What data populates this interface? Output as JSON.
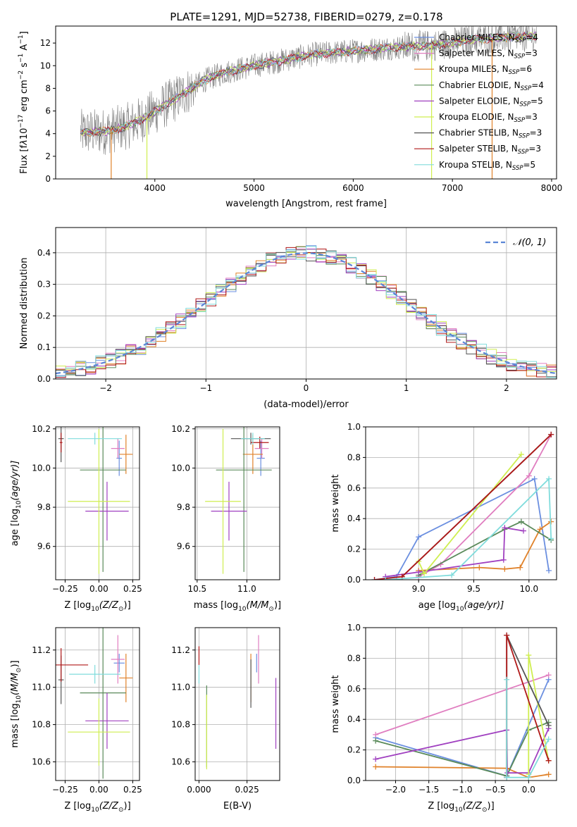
{
  "figure_title": "PLATE=1291, MJD=52738, FIBERID=0279, z=0.178",
  "colors": {
    "Chabrier MILES": "#6b8fe0",
    "Salpeter MILES": "#e07ec0",
    "Kroupa MILES": "#e0822a",
    "Chabrier ELODIE": "#5a8a5a",
    "Salpeter ELODIE": "#a040c0",
    "Kroupa ELODIE": "#cfee50",
    "Chabrier STELIB": "#555555",
    "Salpeter STELIB": "#b01818",
    "Kroupa STELIB": "#80dcdc",
    "data": "#808080",
    "gauss": "#5b86d6"
  },
  "chart_data": [
    {
      "type": "line",
      "id": "spectrum",
      "xlabel": "wavelength [Angstrom, rest frame]",
      "ylabel_html": "Flux [f<tspan font-style='italic'>λ</tspan>10<tspan dy='-6' font-size='9'>−17</tspan><tspan dy='6'> erg cm</tspan><tspan dy='-6' font-size='9'>−2</tspan><tspan dy='6'> s</tspan><tspan dy='-6' font-size='9'>−1</tspan><tspan dy='6'> A</tspan><tspan dy='-6' font-size='9'>−1</tspan><tspan dy='6'>]</tspan>",
      "xlim": [
        3000,
        8050
      ],
      "ylim": [
        0,
        13.5
      ],
      "xticks": [
        4000,
        5000,
        6000,
        7000,
        8000
      ],
      "yticks": [
        0,
        2,
        4,
        6,
        8,
        10,
        12
      ],
      "grid": false,
      "legend_position": "upper-right",
      "legend": [
        {
          "label": "Chabrier MILES, N",
          "sub": "SSP",
          "val": "=4"
        },
        {
          "label": "Salpeter MILES, N",
          "sub": "SSP",
          "val": "=3"
        },
        {
          "label": "Kroupa MILES, N",
          "sub": "SSP",
          "val": "=6"
        },
        {
          "label": "Chabrier ELODIE, N",
          "sub": "SSP",
          "val": "=4"
        },
        {
          "label": "Salpeter ELODIE, N",
          "sub": "SSP",
          "val": "=5"
        },
        {
          "label": "Kroupa ELODIE, N",
          "sub": "SSP",
          "val": "=3"
        },
        {
          "label": "Chabrier STELIB, N",
          "sub": "SSP",
          "val": "=3"
        },
        {
          "label": "Salpeter STELIB, N",
          "sub": "SSP",
          "val": "=3"
        },
        {
          "label": "Kroupa STELIB, N",
          "sub": "SSP",
          "val": "=5"
        }
      ],
      "continuum": {
        "x": [
          3250,
          3500,
          3700,
          3900,
          4100,
          4300,
          4500,
          4700,
          5000,
          5300,
          5600,
          6000,
          6400,
          6800,
          7000,
          7200,
          7500,
          7800
        ],
        "y": [
          4.1,
          4.2,
          4.6,
          5.4,
          6.5,
          7.6,
          8.7,
          9.4,
          10.0,
          10.5,
          11.0,
          11.3,
          11.6,
          11.8,
          12.0,
          12.3,
          12.5,
          12.6
        ]
      },
      "data_range": [
        3250,
        7850
      ]
    },
    {
      "type": "bar",
      "id": "residuals",
      "xlabel": "(data-model)/error",
      "ylabel": "Normed distribution",
      "xlim": [
        -2.5,
        2.5
      ],
      "ylim": [
        0,
        0.48
      ],
      "xticks": [
        -2,
        -1,
        0,
        1,
        2
      ],
      "yticks": [
        0.0,
        0.1,
        0.2,
        0.3,
        0.4
      ],
      "xtick_labels": [
        "−2",
        "−1",
        "0",
        "1",
        "2"
      ],
      "ytick_labels": [
        "0.0",
        "0.1",
        "0.2",
        "0.3",
        "0.4"
      ],
      "grid": true,
      "legend_position": "upper-right",
      "gauss_label": "𝒩(0, 1)",
      "bin_width": 0.1
    },
    {
      "type": "scatter",
      "id": "age-vs-Z",
      "xlabel": "Z [log",
      "xlabel_sub": "10",
      "xlabel_tail": "(Z/Z",
      "ylabel": "age  [log",
      "ylabel_sub": "10",
      "ylabel_tail": "(age/yr)]",
      "xlim": [
        -0.32,
        0.3
      ],
      "ylim": [
        9.43,
        10.21
      ],
      "xticks": [
        -0.25,
        0.0,
        0.25
      ],
      "xtick_labels": [
        "−0.25",
        "0.00",
        "0.25"
      ],
      "yticks": [
        9.6,
        9.8,
        10.0,
        10.2
      ],
      "ytick_labels": [
        "9.6",
        "9.8",
        "10.0",
        "10.2"
      ],
      "grid": true,
      "points": [
        {
          "model": "Chabrier MILES",
          "x": 0.15,
          "y": 10.05,
          "xerr": 0.02,
          "yerr": 0.09
        },
        {
          "model": "Salpeter MILES",
          "x": 0.14,
          "y": 10.1,
          "xerr": 0.05,
          "yerr": 0.05
        },
        {
          "model": "Kroupa MILES",
          "x": 0.2,
          "y": 10.07,
          "xerr": 0.05,
          "yerr": 0.1
        },
        {
          "model": "Chabrier ELODIE",
          "x": 0.03,
          "y": 9.99,
          "xerr": 0.17,
          "yerr": 0.52
        },
        {
          "model": "Salpeter ELODIE",
          "x": 0.06,
          "y": 9.78,
          "xerr": 0.16,
          "yerr": 0.15
        },
        {
          "model": "Kroupa ELODIE",
          "x": 0.0,
          "y": 9.83,
          "xerr": 0.23,
          "yerr": 0.37
        },
        {
          "model": "Chabrier STELIB",
          "x": -0.28,
          "y": 10.15,
          "xerr": 0.02,
          "yerr": 0.12
        },
        {
          "model": "Salpeter STELIB",
          "x": -0.28,
          "y": 10.13,
          "xerr": 0.01,
          "yerr": 0.05
        },
        {
          "model": "Kroupa STELIB",
          "x": -0.03,
          "y": 10.15,
          "xerr": 0.2,
          "yerr": 0.03
        }
      ]
    },
    {
      "type": "scatter",
      "id": "age-vs-mass",
      "xlabel": "mass [log",
      "xlabel_sub": "10",
      "xlabel_tail": "(M/M",
      "xlim": [
        10.48,
        11.33
      ],
      "ylim": [
        9.43,
        10.21
      ],
      "xticks": [
        10.5,
        11.0
      ],
      "xtick_labels": [
        "10.5",
        "11.0"
      ],
      "yticks": [
        9.6,
        9.8,
        10.0,
        10.2
      ],
      "ytick_labels": [
        "9.6",
        "9.8",
        "10.0",
        "10.2"
      ],
      "grid": true,
      "points": [
        {
          "model": "Chabrier MILES",
          "x": 11.14,
          "y": 10.05,
          "xerr": 0.04,
          "yerr": 0.09
        },
        {
          "model": "Salpeter MILES",
          "x": 11.15,
          "y": 10.1,
          "xerr": 0.07,
          "yerr": 0.05
        },
        {
          "model": "Kroupa MILES",
          "x": 11.06,
          "y": 10.07,
          "xerr": 0.1,
          "yerr": 0.1
        },
        {
          "model": "Chabrier ELODIE",
          "x": 10.97,
          "y": 9.99,
          "xerr": 0.28,
          "yerr": 0.52
        },
        {
          "model": "Salpeter ELODIE",
          "x": 10.82,
          "y": 9.78,
          "xerr": 0.18,
          "yerr": 0.15
        },
        {
          "model": "Kroupa ELODIE",
          "x": 10.76,
          "y": 9.83,
          "xerr": 0.18,
          "yerr": 0.37
        },
        {
          "model": "Chabrier STELIB",
          "x": 11.04,
          "y": 10.15,
          "xerr": 0.2,
          "yerr": 0.03
        },
        {
          "model": "Salpeter STELIB",
          "x": 11.13,
          "y": 10.13,
          "xerr": 0.09,
          "yerr": 0.03
        },
        {
          "model": "Kroupa STELIB",
          "x": 11.06,
          "y": 10.15,
          "xerr": 0.12,
          "yerr": 0.03
        }
      ]
    },
    {
      "type": "line",
      "id": "mass-weight-vs-age",
      "xlabel": "age  [log",
      "xlabel_sub": "10",
      "xlabel_tail": "(age/yr)]",
      "ylabel": "mass weight",
      "xlim": [
        8.52,
        10.25
      ],
      "ylim": [
        0,
        1.0
      ],
      "xticks": [
        9.0,
        9.5,
        10.0
      ],
      "xtick_labels": [
        "9.0",
        "9.5",
        "10.0"
      ],
      "yticks": [
        0.0,
        0.2,
        0.4,
        0.6,
        0.8,
        1.0
      ],
      "ytick_labels": [
        "0.0",
        "0.2",
        "0.4",
        "0.6",
        "0.8",
        "1.0"
      ],
      "grid": true,
      "series": [
        {
          "model": "Chabrier MILES",
          "x": [
            8.6,
            8.8,
            9.0,
            10.05,
            10.18
          ],
          "y": [
            0.0,
            0.02,
            0.28,
            0.66,
            0.06
          ]
        },
        {
          "model": "Salpeter MILES",
          "x": [
            9.0,
            9.2,
            10.0,
            10.2
          ],
          "y": [
            0.02,
            0.1,
            0.68,
            0.95
          ]
        },
        {
          "model": "Kroupa MILES",
          "x": [
            9.0,
            9.55,
            9.78,
            9.92,
            10.1,
            10.2
          ],
          "y": [
            0.06,
            0.08,
            0.07,
            0.08,
            0.33,
            0.38
          ]
        },
        {
          "model": "Chabrier ELODIE",
          "x": [
            9.0,
            9.78,
            9.93,
            10.2
          ],
          "y": [
            0.03,
            0.33,
            0.38,
            0.26
          ]
        },
        {
          "model": "Salpeter ELODIE",
          "x": [
            8.7,
            9.0,
            9.77,
            9.78,
            9.95
          ],
          "y": [
            0.02,
            0.05,
            0.13,
            0.34,
            0.32
          ]
        },
        {
          "model": "Kroupa ELODIE",
          "x": [
            9.0,
            9.05,
            9.93
          ],
          "y": [
            0.12,
            0.04,
            0.82
          ]
        },
        {
          "model": "Chabrier STELIB",
          "x": [
            8.85,
            10.2
          ],
          "y": [
            0.02,
            0.95
          ]
        },
        {
          "model": "Salpeter STELIB",
          "x": [
            8.6,
            8.85,
            10.2
          ],
          "y": [
            0.0,
            0.02,
            0.95
          ]
        },
        {
          "model": "Kroupa STELIB",
          "x": [
            8.7,
            9.3,
            10.18,
            10.2
          ],
          "y": [
            0.0,
            0.03,
            0.66,
            0.27
          ]
        }
      ]
    },
    {
      "type": "scatter",
      "id": "mass-vs-Z",
      "ylabel": "mass [log",
      "ylabel_sub": "10",
      "ylabel_tail": "(M/M",
      "xlabel": "Z [log",
      "xlabel_sub": "10",
      "xlabel_tail": "(Z/Z",
      "xlim": [
        -0.32,
        0.3
      ],
      "ylim": [
        10.5,
        11.32
      ],
      "xticks": [
        -0.25,
        0.0,
        0.25
      ],
      "xtick_labels": [
        "−0.25",
        "0.00",
        "0.25"
      ],
      "yticks": [
        10.6,
        10.8,
        11.0,
        11.2
      ],
      "ytick_labels": [
        "10.6",
        "10.8",
        "11.0",
        "11.2"
      ],
      "grid": true,
      "points": [
        {
          "model": "Chabrier MILES",
          "x": 0.15,
          "y": 11.13,
          "xerr": 0.04,
          "yerr": 0.05
        },
        {
          "model": "Salpeter MILES",
          "x": 0.14,
          "y": 11.15,
          "xerr": 0.05,
          "yerr": 0.13
        },
        {
          "model": "Kroupa MILES",
          "x": 0.2,
          "y": 11.05,
          "xerr": 0.05,
          "yerr": 0.13
        },
        {
          "model": "Chabrier ELODIE",
          "x": 0.03,
          "y": 10.97,
          "xerr": 0.17,
          "yerr": 0.46
        },
        {
          "model": "Salpeter ELODIE",
          "x": 0.06,
          "y": 10.82,
          "xerr": 0.16,
          "yerr": 0.15
        },
        {
          "model": "Kroupa ELODIE",
          "x": 0.0,
          "y": 10.76,
          "xerr": 0.23,
          "yerr": 0.18
        },
        {
          "model": "Chabrier STELIB",
          "x": -0.28,
          "y": 11.04,
          "xerr": 0.02,
          "yerr": 0.13
        },
        {
          "model": "Salpeter STELIB",
          "x": -0.28,
          "y": 11.12,
          "xerr": 0.2,
          "yerr": 0.09
        },
        {
          "model": "Kroupa STELIB",
          "x": -0.03,
          "y": 11.07,
          "xerr": 0.19,
          "yerr": 0.05
        }
      ]
    },
    {
      "type": "scatter",
      "id": "mass-vs-EBV",
      "xlabel": "E(B-V)",
      "xlim": [
        -0.002,
        0.042
      ],
      "ylim": [
        10.5,
        11.32
      ],
      "xticks": [
        0.0,
        0.025
      ],
      "xtick_labels": [
        "0.000",
        "0.025"
      ],
      "yticks": [
        10.6,
        10.8,
        11.0,
        11.2
      ],
      "ytick_labels": [
        "10.6",
        "10.8",
        "11.0",
        "11.2"
      ],
      "grid": true,
      "points": [
        {
          "model": "Chabrier MILES",
          "x": 0.03,
          "y": 11.13,
          "yerr": 0.05
        },
        {
          "model": "Salpeter MILES",
          "x": 0.031,
          "y": 11.15,
          "yerr": 0.13
        },
        {
          "model": "Kroupa MILES",
          "x": 0.027,
          "y": 11.05,
          "yerr": 0.13
        },
        {
          "model": "Chabrier ELODIE",
          "x": 0.004,
          "y": 10.79,
          "yerr": 0.22
        },
        {
          "model": "Salpeter ELODIE",
          "x": 0.04,
          "y": 10.86,
          "yerr": 0.19
        },
        {
          "model": "Kroupa ELODIE",
          "x": 0.004,
          "y": 10.76,
          "yerr": 0.2
        },
        {
          "model": "Chabrier STELIB",
          "x": 0.027,
          "y": 11.02,
          "yerr": 0.13
        },
        {
          "model": "Salpeter STELIB",
          "x": 0.0,
          "y": 11.17,
          "yerr": 0.05
        },
        {
          "model": "Kroupa STELIB",
          "x": 0.0,
          "y": 11.07,
          "yerr": 0.05
        }
      ]
    },
    {
      "type": "line",
      "id": "mass-weight-vs-Z",
      "xlabel": "Z [log",
      "xlabel_sub": "10",
      "xlabel_tail": "(Z/Z",
      "ylabel": "mass weight",
      "xlim": [
        -2.45,
        0.42
      ],
      "ylim": [
        0,
        1.0
      ],
      "xticks": [
        -2.0,
        -1.5,
        -1.0,
        -0.5,
        0.0
      ],
      "xtick_labels": [
        "−2.0",
        "−1.5",
        "−1.0",
        "−0.5",
        "0.0"
      ],
      "yticks": [
        0.0,
        0.2,
        0.4,
        0.6,
        0.8,
        1.0
      ],
      "ytick_labels": [
        "0.0",
        "0.2",
        "0.4",
        "0.6",
        "0.8",
        "1.0"
      ],
      "grid": true,
      "series": [
        {
          "model": "Chabrier MILES",
          "x": [
            -2.3,
            -0.33,
            0.3
          ],
          "y": [
            0.28,
            0.03,
            0.66
          ]
        },
        {
          "model": "Salpeter MILES",
          "x": [
            -2.3,
            0.3
          ],
          "y": [
            0.3,
            0.69
          ]
        },
        {
          "model": "Kroupa MILES",
          "x": [
            -2.3,
            -0.33,
            0.0,
            0.3
          ],
          "y": [
            0.09,
            0.08,
            0.02,
            0.04
          ]
        },
        {
          "model": "Chabrier ELODIE",
          "x": [
            -2.3,
            -0.33,
            0.0,
            0.3
          ],
          "y": [
            0.26,
            0.03,
            0.33,
            0.38
          ]
        },
        {
          "model": "Salpeter ELODIE",
          "x": [
            -2.3,
            -0.33,
            -0.32,
            0.0,
            0.3
          ],
          "y": [
            0.14,
            0.33,
            0.05,
            0.05,
            0.34
          ]
        },
        {
          "model": "Kroupa ELODIE",
          "x": [
            0.0,
            0.0,
            0.3
          ],
          "y": [
            0.04,
            0.82,
            0.13
          ]
        },
        {
          "model": "Chabrier STELIB",
          "x": [
            -0.33,
            -0.33,
            0.3
          ],
          "y": [
            0.02,
            0.95,
            0.36
          ]
        },
        {
          "model": "Salpeter STELIB",
          "x": [
            -0.33,
            -0.33,
            0.3
          ],
          "y": [
            0.02,
            0.95,
            0.13
          ]
        },
        {
          "model": "Kroupa STELIB",
          "x": [
            -0.33,
            -0.33,
            0.0,
            0.3
          ],
          "y": [
            0.66,
            0.02,
            0.02,
            0.27
          ]
        }
      ]
    }
  ]
}
